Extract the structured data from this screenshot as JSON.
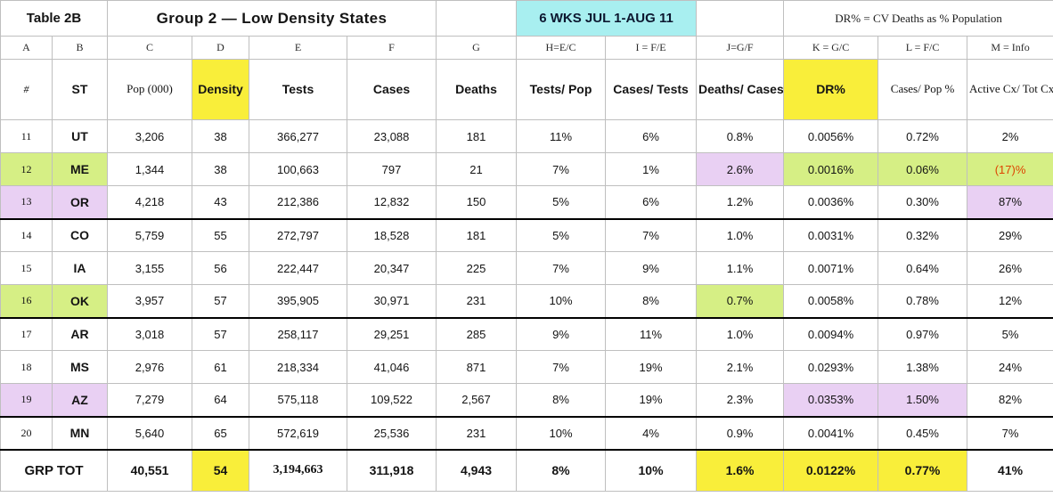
{
  "colors": {
    "yellow": "#f9ee3a",
    "green": "#d6ef85",
    "purple": "#e9d0f3",
    "cyan": "#a8eff0",
    "red": "#de4300",
    "grid": "#bfbfbf",
    "border": "#000000"
  },
  "chart_data": {
    "type": "table",
    "table_label": "Table 2B",
    "title": "Group 2  —  Low Density States",
    "period": "6 WKS JUL 1-AUG 11",
    "note": "DR% = CV Deaths as % Population",
    "column_letters": [
      "A",
      "B",
      "C",
      "D",
      "E",
      "F",
      "G",
      "H=E/C",
      "I = F/E",
      "J=G/F",
      "K = G/C",
      "L = F/C",
      "M = Info"
    ],
    "columns": [
      {
        "key": "row-num",
        "label": "#",
        "font": "f-serif-italic"
      },
      {
        "key": "state",
        "label": "ST",
        "font": "f-bold"
      },
      {
        "key": "pop",
        "label": "Pop (000)",
        "font": "f-serif"
      },
      {
        "key": "density",
        "label": "Density",
        "font": "f-bold",
        "bg": "yellow"
      },
      {
        "key": "tests",
        "label": "Tests",
        "font": "f-bold"
      },
      {
        "key": "cases",
        "label": "Cases",
        "font": "f-bold"
      },
      {
        "key": "deaths",
        "label": "Deaths",
        "font": "f-bold"
      },
      {
        "key": "tests-pop",
        "label": "Tests/\nPop",
        "font": "f-bold"
      },
      {
        "key": "cases-tests",
        "label": "Cases/\nTests",
        "font": "f-bold"
      },
      {
        "key": "deaths-cases",
        "label": "Deaths/\nCases",
        "font": "f-bold"
      },
      {
        "key": "dr-pct",
        "label": "DR%",
        "font": "f-bold",
        "bg": "yellow"
      },
      {
        "key": "cases-pop-pct",
        "label": "Cases/ Pop\n%",
        "font": "f-serif"
      },
      {
        "key": "active-cases-pct",
        "label": "Active Cx/\nTot Cx %",
        "font": "f-serif"
      }
    ],
    "rows": [
      {
        "cells": [
          "11",
          "UT",
          "3,206",
          "38",
          "366,277",
          "23,088",
          "181",
          "11%",
          "6%",
          "0.8%",
          "0.0056%",
          "0.72%",
          "2%"
        ],
        "hl": {},
        "fg": {},
        "group_end": false
      },
      {
        "cells": [
          "12",
          "ME",
          "1,344",
          "38",
          "100,663",
          "797",
          "21",
          "7%",
          "1%",
          "2.6%",
          "0.0016%",
          "0.06%",
          "(17)%"
        ],
        "hl": {
          "0": "green",
          "1": "green",
          "9": "purple",
          "10": "green",
          "11": "green",
          "12": "green"
        },
        "fg": {
          "12": "red"
        },
        "group_end": false
      },
      {
        "cells": [
          "13",
          "OR",
          "4,218",
          "43",
          "212,386",
          "12,832",
          "150",
          "5%",
          "6%",
          "1.2%",
          "0.0036%",
          "0.30%",
          "87%"
        ],
        "hl": {
          "0": "purple",
          "1": "purple",
          "12": "purple"
        },
        "fg": {},
        "group_end": true
      },
      {
        "cells": [
          "14",
          "CO",
          "5,759",
          "55",
          "272,797",
          "18,528",
          "181",
          "5%",
          "7%",
          "1.0%",
          "0.0031%",
          "0.32%",
          "29%"
        ],
        "hl": {},
        "fg": {},
        "group_end": false
      },
      {
        "cells": [
          "15",
          "IA",
          "3,155",
          "56",
          "222,447",
          "20,347",
          "225",
          "7%",
          "9%",
          "1.1%",
          "0.0071%",
          "0.64%",
          "26%"
        ],
        "hl": {},
        "fg": {},
        "group_end": false
      },
      {
        "cells": [
          "16",
          "OK",
          "3,957",
          "57",
          "395,905",
          "30,971",
          "231",
          "10%",
          "8%",
          "0.7%",
          "0.0058%",
          "0.78%",
          "12%"
        ],
        "hl": {
          "0": "green",
          "1": "green",
          "9": "green"
        },
        "fg": {},
        "group_end": true
      },
      {
        "cells": [
          "17",
          "AR",
          "3,018",
          "57",
          "258,117",
          "29,251",
          "285",
          "9%",
          "11%",
          "1.0%",
          "0.0094%",
          "0.97%",
          "5%"
        ],
        "hl": {},
        "fg": {},
        "group_end": false
      },
      {
        "cells": [
          "18",
          "MS",
          "2,976",
          "61",
          "218,334",
          "41,046",
          "871",
          "7%",
          "19%",
          "2.1%",
          "0.0293%",
          "1.38%",
          "24%"
        ],
        "hl": {},
        "fg": {},
        "group_end": false
      },
      {
        "cells": [
          "19",
          "AZ",
          "7,279",
          "64",
          "575,118",
          "109,522",
          "2,567",
          "8%",
          "19%",
          "2.3%",
          "0.0353%",
          "1.50%",
          "82%"
        ],
        "hl": {
          "0": "purple",
          "1": "purple",
          "10": "purple",
          "11": "purple"
        },
        "fg": {},
        "group_end": true
      },
      {
        "cells": [
          "20",
          "MN",
          "5,640",
          "65",
          "572,619",
          "25,536",
          "231",
          "10%",
          "4%",
          "0.9%",
          "0.0041%",
          "0.45%",
          "7%"
        ],
        "hl": {},
        "fg": {},
        "group_end": true
      }
    ],
    "total": {
      "cells": [
        "GRP TOT",
        "40,551",
        "54",
        "3,194,663",
        "311,918",
        "4,943",
        "8%",
        "10%",
        "1.6%",
        "0.0122%",
        "0.77%",
        "41%"
      ],
      "hl": {
        "2": "yellow",
        "8": "yellow",
        "9": "yellow",
        "10": "yellow"
      },
      "fonts": {
        "3": "f-serif"
      }
    }
  }
}
